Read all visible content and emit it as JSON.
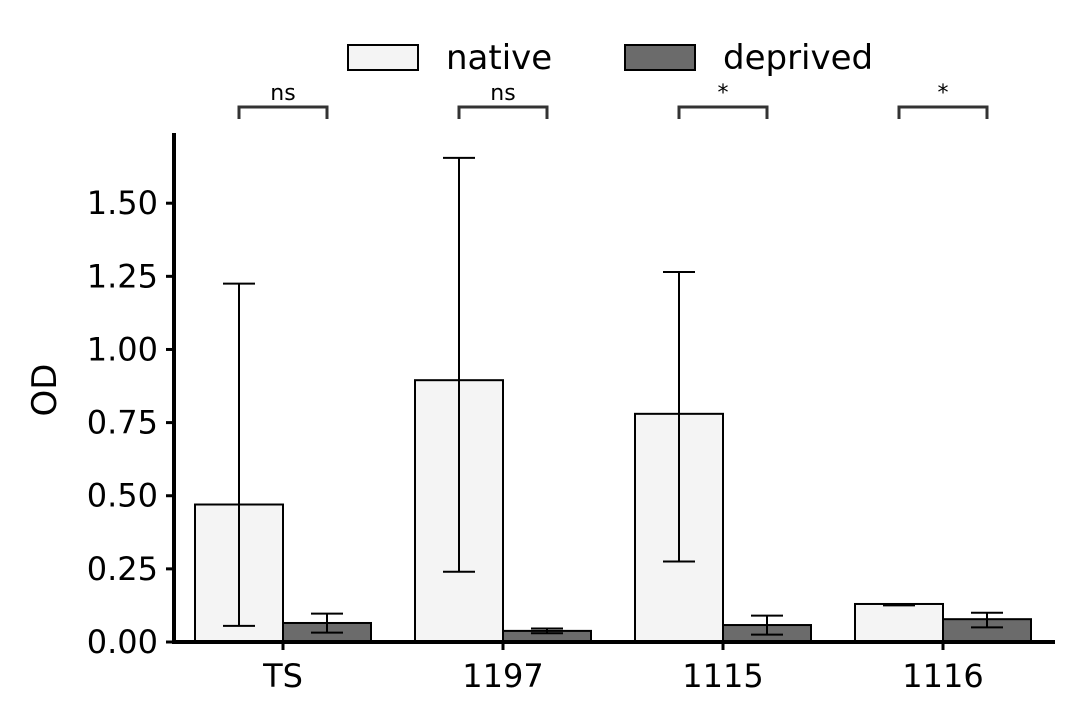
{
  "chart_data": {
    "type": "bar",
    "title": "",
    "xlabel": "",
    "ylabel": "OD",
    "ylim": [
      0,
      1.74
    ],
    "yticks": [
      "0.00",
      "0.25",
      "0.50",
      "0.75",
      "1.00",
      "1.25",
      "1.50"
    ],
    "categories": [
      "TS",
      "1197",
      "1115",
      "1116"
    ],
    "series": [
      {
        "name": "native",
        "color": "#f4f4f4",
        "values": [
          0.47,
          0.895,
          0.78,
          0.13
        ],
        "err_low": [
          0.055,
          0.24,
          0.275,
          0.125
        ],
        "err_high": [
          1.225,
          1.655,
          1.265,
          0.13
        ]
      },
      {
        "name": "deprived",
        "color": "#6b6b6b",
        "values": [
          0.065,
          0.038,
          0.058,
          0.078
        ],
        "err_low": [
          0.032,
          0.03,
          0.025,
          0.05
        ],
        "err_high": [
          0.097,
          0.046,
          0.09,
          0.1
        ]
      }
    ],
    "significance": [
      "ns",
      "ns",
      "*",
      "*"
    ],
    "legend": "top-center",
    "grid": false
  }
}
